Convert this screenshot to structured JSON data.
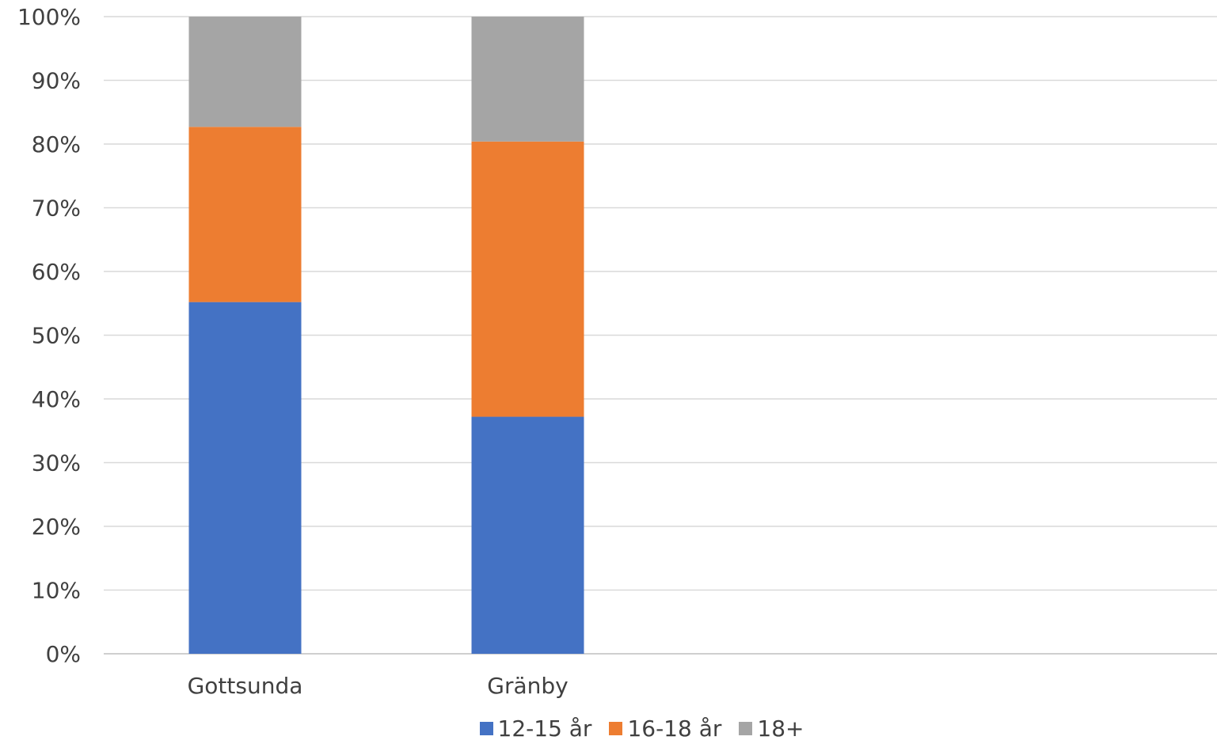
{
  "chart_data": {
    "type": "bar",
    "stacked": true,
    "categories": [
      "Gottsunda",
      "Gränby"
    ],
    "series": [
      {
        "name": "12-15 år",
        "color": "#4472C4",
        "values": [
          55.2,
          37.2
        ]
      },
      {
        "name": "16-18 år",
        "color": "#ED7D31",
        "values": [
          27.5,
          43.2
        ]
      },
      {
        "name": "18+",
        "color": "#A5A5A5",
        "values": [
          17.3,
          19.6
        ]
      }
    ],
    "title": "",
    "xlabel": "",
    "ylabel": "",
    "ylim": [
      0,
      100
    ],
    "yticks": [
      "0%",
      "10%",
      "20%",
      "30%",
      "40%",
      "50%",
      "60%",
      "70%",
      "80%",
      "90%",
      "100%"
    ],
    "grid": true,
    "legend": "bottom"
  }
}
